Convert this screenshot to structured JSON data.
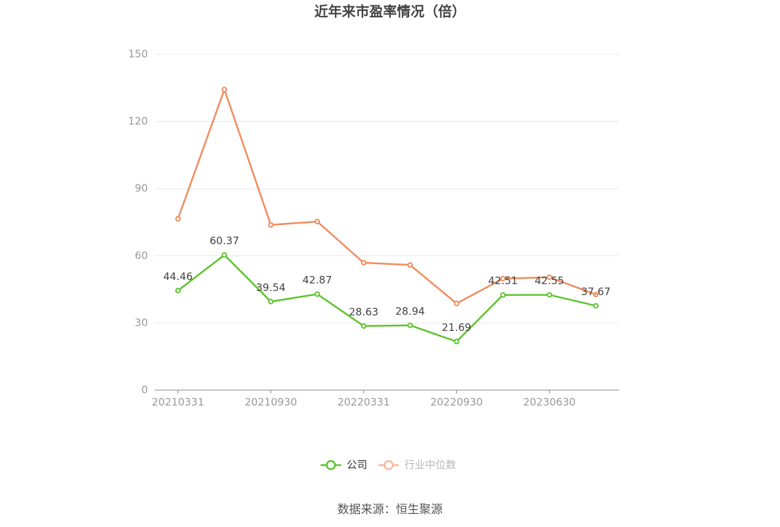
{
  "chart_data": {
    "type": "line",
    "title": "近年来市盈率情况（倍）",
    "categories": [
      "20210331",
      null,
      "20210930",
      null,
      "20220331",
      null,
      "20220930",
      null,
      "20230630",
      null
    ],
    "series": [
      {
        "name": "公司",
        "color": "#5bc42a",
        "values": [
          44.46,
          60.37,
          39.54,
          42.87,
          28.63,
          28.94,
          21.69,
          42.51,
          42.55,
          37.67
        ],
        "show_labels": true
      },
      {
        "name": "行业中位数",
        "color": "#f28b5c",
        "values": [
          76.5,
          134.3,
          73.8,
          75.3,
          56.9,
          55.9,
          38.7,
          49.8,
          50.4,
          42.7
        ],
        "show_labels": false
      }
    ],
    "ylim": [
      0,
      150
    ],
    "yticks": [
      0,
      30,
      60,
      90,
      120,
      150
    ],
    "grid": true,
    "legend": "bottom",
    "source": "数据来源：恒生聚源"
  }
}
